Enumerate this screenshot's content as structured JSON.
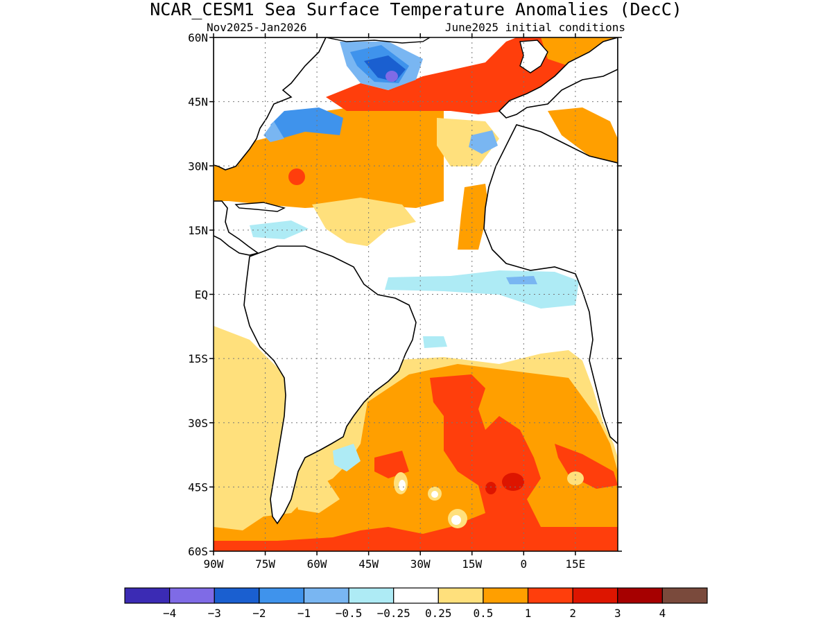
{
  "title": "NCAR_CESM1 Sea Surface Temperature Anomalies (DecC)",
  "subtitle_left": "Nov2025-Jan2026",
  "subtitle_right": "June2025 initial conditions",
  "map": {
    "lat_labels": [
      "60N",
      "45N",
      "30N",
      "15N",
      "EQ",
      "15S",
      "30S",
      "45S",
      "60S"
    ],
    "lon_labels": [
      "90W",
      "75W",
      "60W",
      "45W",
      "30W",
      "15W",
      "0",
      "15E"
    ],
    "lat_values": [
      60,
      45,
      30,
      15,
      0,
      -15,
      -30,
      -45,
      -60
    ],
    "lon_values": [
      -90,
      -75,
      -60,
      -45,
      -30,
      -15,
      0,
      15
    ],
    "grid": "dotted"
  },
  "colorbar": {
    "labels": [
      "-4",
      "-3",
      "-2",
      "-1",
      "-0.5",
      "-0.25",
      "0.25",
      "0.5",
      "1",
      "2",
      "3",
      "4"
    ],
    "colors": [
      "#3b2bb4",
      "#7f6be6",
      "#1a5fd0",
      "#3f93ec",
      "#79b6f2",
      "#aeebf5",
      "#ffffff",
      "#ffe07c",
      "#ff9f00",
      "#ff3e0c",
      "#dd1500",
      "#a60000",
      "#7a4a3c"
    ]
  }
}
